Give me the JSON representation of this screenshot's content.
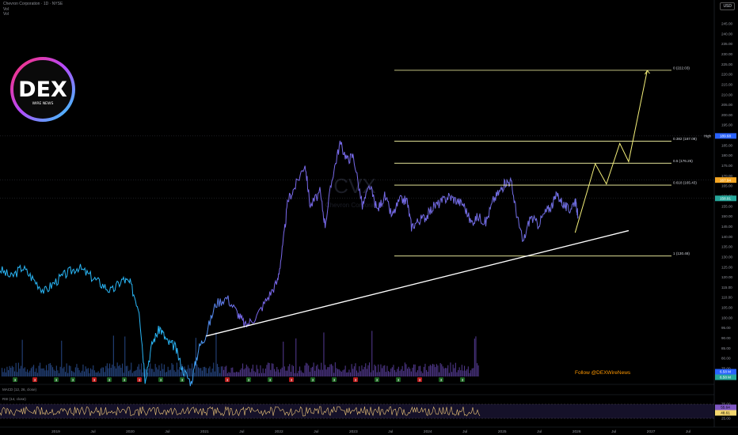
{
  "header": {
    "symbol_line": "Chevron Corporation · 1D · NYSE",
    "line2": "Vol",
    "line3": "Vol"
  },
  "currency_label": "USD",
  "logo": {
    "text": "DEX",
    "subtext": "WIRE NEWS"
  },
  "watermark": {
    "ticker": "CVX",
    "name": "Chevron Corporation"
  },
  "follow_text": "Follow @DEXWireNews",
  "indicators": {
    "macd_label": "MACD (12, 26, close)",
    "rsi_label": "RSI (14, close)",
    "rsi_values": [
      "55.64",
      "48.61"
    ],
    "rsi_axis": [
      "75.00",
      "25.00"
    ]
  },
  "price_badges": {
    "high_label": "High",
    "high_value": "189.68",
    "level_value": "167.94",
    "last_value": "158.91",
    "vol_a": "6.58 M",
    "vol_b": "6.58 M"
  },
  "colors": {
    "background": "#000000",
    "price_blue": "#29b6f6",
    "price_purple": "#7b68ee",
    "fib_line": "#ffffaa",
    "projection": "#f5f07a",
    "trendline": "#ffffff",
    "rsi_line": "#f0c97a",
    "follow": "#ff9800"
  },
  "chart_data": {
    "type": "line",
    "title": "Chevron Corporation · 1D · NYSE",
    "xlabel": "",
    "ylabel": "",
    "x_ticks": [
      "2019",
      "Jul",
      "2020",
      "Jul",
      "2021",
      "Jul",
      "2022",
      "Jul",
      "2023",
      "Jul",
      "2024",
      "Jul",
      "2025",
      "Jul",
      "2026",
      "Jul",
      "2027",
      "Jul"
    ],
    "y_ticks": [
      "245.00",
      "240.00",
      "235.00",
      "230.00",
      "225.00",
      "220.00",
      "215.00",
      "210.00",
      "205.00",
      "200.00",
      "195.00",
      "190.00",
      "185.00",
      "180.00",
      "175.00",
      "170.00",
      "165.00",
      "160.00",
      "155.00",
      "150.00",
      "145.00",
      "140.00",
      "135.00",
      "130.00",
      "125.00",
      "120.00",
      "115.00",
      "110.00",
      "105.00",
      "100.00",
      "95.00",
      "90.00",
      "85.00",
      "80.00",
      "75.00"
    ],
    "ylim": [
      75,
      250
    ],
    "price_series": {
      "name": "CVX",
      "points": [
        [
          2018.25,
          124
        ],
        [
          2018.4,
          120
        ],
        [
          2018.55,
          125
        ],
        [
          2018.7,
          119
        ],
        [
          2018.85,
          113
        ],
        [
          2019.0,
          118
        ],
        [
          2019.15,
          122
        ],
        [
          2019.3,
          125
        ],
        [
          2019.45,
          121
        ],
        [
          2019.6,
          117
        ],
        [
          2019.75,
          113
        ],
        [
          2019.9,
          119
        ],
        [
          2020.0,
          117
        ],
        [
          2020.12,
          104
        ],
        [
          2020.2,
          70
        ],
        [
          2020.3,
          88
        ],
        [
          2020.4,
          95
        ],
        [
          2020.5,
          88
        ],
        [
          2020.6,
          86
        ],
        [
          2020.7,
          75
        ],
        [
          2020.82,
          68
        ],
        [
          2020.92,
          85
        ],
        [
          2021.02,
          92
        ],
        [
          2021.15,
          107
        ],
        [
          2021.3,
          110
        ],
        [
          2021.45,
          102
        ],
        [
          2021.55,
          96
        ],
        [
          2021.7,
          101
        ],
        [
          2021.85,
          110
        ],
        [
          2021.98,
          118
        ],
        [
          2022.05,
          135
        ],
        [
          2022.12,
          158
        ],
        [
          2022.22,
          165
        ],
        [
          2022.35,
          176
        ],
        [
          2022.42,
          155
        ],
        [
          2022.55,
          162
        ],
        [
          2022.62,
          146
        ],
        [
          2022.72,
          170
        ],
        [
          2022.82,
          186
        ],
        [
          2022.92,
          178
        ],
        [
          2023.0,
          180
        ],
        [
          2023.12,
          155
        ],
        [
          2023.22,
          165
        ],
        [
          2023.32,
          153
        ],
        [
          2023.42,
          160
        ],
        [
          2023.52,
          150
        ],
        [
          2023.62,
          158
        ],
        [
          2023.72,
          158
        ],
        [
          2023.78,
          145
        ],
        [
          2023.88,
          148
        ],
        [
          2023.98,
          150
        ],
        [
          2024.08,
          155
        ],
        [
          2024.18,
          157
        ],
        [
          2024.28,
          160
        ],
        [
          2024.38,
          158
        ],
        [
          2024.48,
          156
        ],
        [
          2024.58,
          147
        ],
        [
          2024.68,
          150
        ],
        [
          2024.78,
          147
        ],
        [
          2024.88,
          158
        ],
        [
          2024.98,
          163
        ],
        [
          2025.05,
          167
        ],
        [
          2025.12,
          167
        ],
        [
          2025.2,
          150
        ],
        [
          2025.28,
          137
        ],
        [
          2025.38,
          150
        ],
        [
          2025.48,
          146
        ],
        [
          2025.58,
          152
        ],
        [
          2025.66,
          155
        ],
        [
          2025.74,
          161
        ],
        [
          2025.82,
          156
        ],
        [
          2025.9,
          153
        ],
        [
          2025.98,
          158
        ],
        [
          2026.02,
          150
        ]
      ]
    },
    "fibonacci": [
      {
        "ratio": "0",
        "price": 222.03,
        "label": "0 (222.03)"
      },
      {
        "ratio": "0.382",
        "price": 187.08,
        "label": "0.382 (187.08)"
      },
      {
        "ratio": "0.5",
        "price": 176.25,
        "label": "0.5 (176.25)"
      },
      {
        "ratio": "0.618",
        "price": 165.43,
        "label": "0.618 (165.43)"
      },
      {
        "ratio": "1",
        "price": 130.48,
        "label": "1 (130.48)"
      }
    ],
    "trendline": [
      [
        2021.02,
        91
      ],
      [
        2026.7,
        143
      ]
    ],
    "projection": [
      [
        2025.98,
        142
      ],
      [
        2026.25,
        176
      ],
      [
        2026.4,
        166
      ],
      [
        2026.58,
        186
      ],
      [
        2026.7,
        177
      ],
      [
        2026.95,
        222
      ]
    ],
    "volume_badges": [
      "3",
      "3",
      "3",
      "3",
      "3",
      "3",
      "3",
      "3",
      "3",
      "3",
      "3",
      "3",
      "3",
      "3",
      "3",
      "3",
      "3",
      "3",
      "3",
      "3",
      "3",
      "3"
    ]
  }
}
